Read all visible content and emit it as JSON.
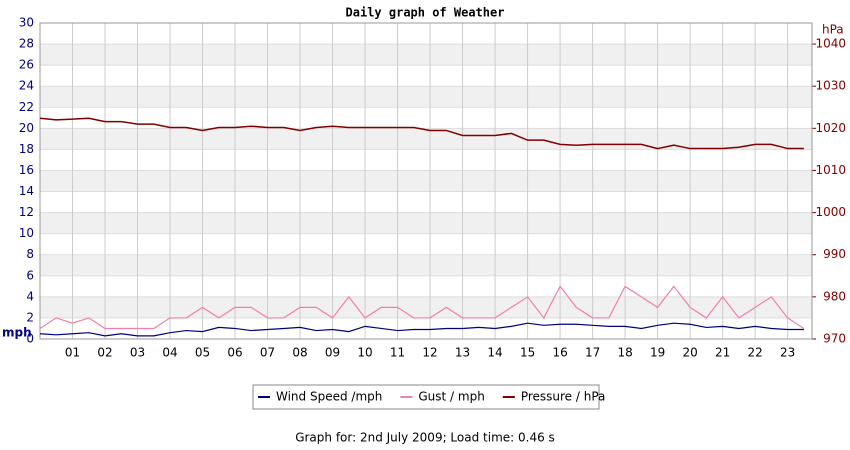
{
  "chart_data": {
    "type": "line",
    "title": "Daily graph of Weather",
    "y_label": "mph",
    "y2_label": "hPa",
    "x": [
      0,
      0.5,
      1,
      1.5,
      2,
      2.5,
      3,
      3.5,
      4,
      4.5,
      5,
      5.5,
      6,
      6.5,
      7,
      7.5,
      8,
      8.5,
      9,
      9.5,
      10,
      10.5,
      11,
      11.5,
      12,
      12.5,
      13,
      13.5,
      14,
      14.5,
      15,
      15.5,
      16,
      16.5,
      17,
      17.5,
      18,
      18.5,
      19,
      19.5,
      20,
      20.5,
      21,
      21.5,
      22,
      22.5,
      23,
      23.5
    ],
    "xlim": [
      0,
      23.75
    ],
    "xticks": [
      {
        "value": 1,
        "label": "01"
      },
      {
        "value": 2,
        "label": "02"
      },
      {
        "value": 3,
        "label": "03"
      },
      {
        "value": 4,
        "label": "04"
      },
      {
        "value": 5,
        "label": "05"
      },
      {
        "value": 6,
        "label": "06"
      },
      {
        "value": 7,
        "label": "07"
      },
      {
        "value": 8,
        "label": "08"
      },
      {
        "value": 9,
        "label": "09"
      },
      10,
      11,
      12,
      13,
      14,
      15,
      16,
      17,
      18,
      19,
      20,
      21,
      22,
      23
    ],
    "ylim": [
      0,
      30
    ],
    "yticks": [
      0,
      2,
      4,
      6,
      8,
      10,
      12,
      14,
      16,
      18,
      20,
      22,
      24,
      26,
      28,
      30
    ],
    "y2lim": [
      970,
      1045
    ],
    "y2ticks": [
      970,
      980,
      990,
      1000,
      1010,
      1020,
      1030,
      1040
    ],
    "grid": true,
    "series": [
      {
        "name": "Gust / mph",
        "color": "#f080a8",
        "values": [
          1,
          2,
          1.5,
          2,
          1,
          1,
          1,
          1,
          2,
          2,
          3,
          2,
          3,
          3,
          2,
          2,
          3,
          3,
          2,
          4,
          2,
          3,
          3,
          2,
          2,
          3,
          2,
          2,
          2,
          3,
          4,
          2,
          5,
          3,
          2,
          2,
          5,
          4,
          3,
          5,
          3,
          2,
          4,
          2,
          3,
          4,
          2,
          1
        ]
      },
      {
        "name": "Wind Speed /mph",
        "color": "#000080",
        "values": [
          0.5,
          0.4,
          0.5,
          0.6,
          0.3,
          0.5,
          0.3,
          0.3,
          0.6,
          0.8,
          0.7,
          1.1,
          1,
          0.8,
          0.9,
          1,
          1.1,
          0.8,
          0.9,
          0.7,
          1.2,
          1,
          0.8,
          0.9,
          0.9,
          1,
          1,
          1.1,
          1,
          1.2,
          1.5,
          1.3,
          1.4,
          1.4,
          1.3,
          1.2,
          1.2,
          1,
          1.3,
          1.5,
          1.4,
          1.1,
          1.2,
          1,
          1.2,
          1,
          0.9,
          0.9
        ]
      },
      {
        "name": "Pressure / hPa",
        "color": "#800000",
        "axis": "y2",
        "values": [
          1022.4,
          1022,
          1022.2,
          1022.4,
          1021.6,
          1021.6,
          1021,
          1021,
          1020.2,
          1020.2,
          1019.5,
          1020.2,
          1020.2,
          1020.5,
          1020.2,
          1020.2,
          1019.5,
          1020.2,
          1020.5,
          1020.2,
          1020.2,
          1020.2,
          1020.2,
          1020.2,
          1019.5,
          1019.5,
          1018.3,
          1018.3,
          1018.3,
          1018.8,
          1017.2,
          1017.2,
          1016.2,
          1016,
          1016.2,
          1016.2,
          1016.2,
          1016.2,
          1015.2,
          1016,
          1015.2,
          1015.2,
          1015.2,
          1015.5,
          1016.2,
          1016.2,
          1015.2,
          1015.2
        ]
      }
    ],
    "legend_order": [
      1,
      0,
      2
    ],
    "footer": "Graph for: 2nd July 2009; Load time: 0.46 s"
  }
}
